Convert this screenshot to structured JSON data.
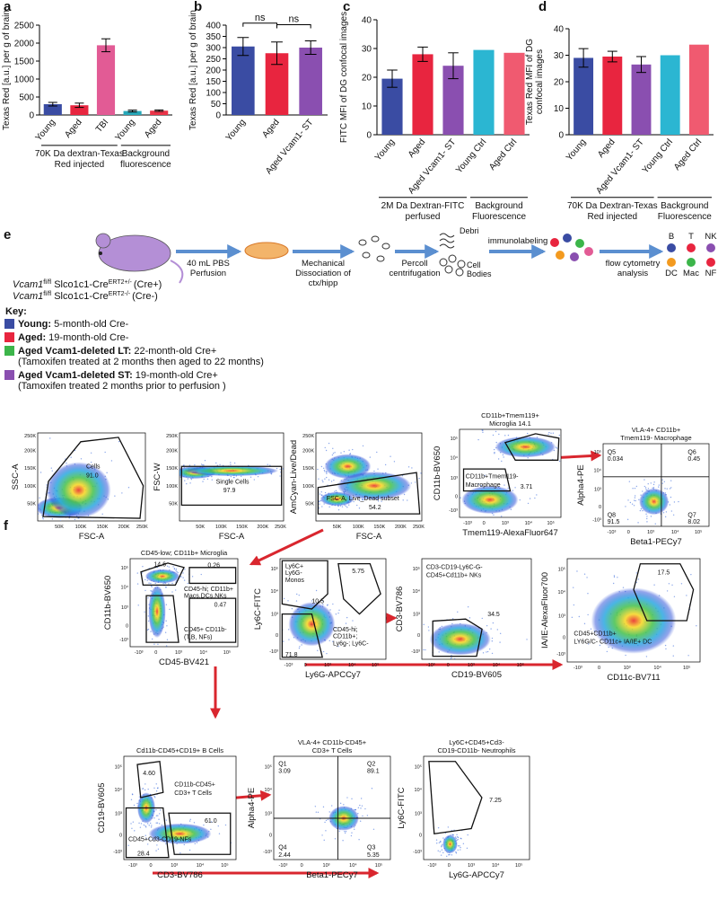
{
  "chart_data": [
    {
      "type": "bar",
      "panel": "a",
      "ylabel": [
        "Texas Red [a.u.] per g of brain"
      ],
      "ylim": [
        0,
        2500
      ],
      "yticks": [
        0,
        500,
        1000,
        1500,
        2000,
        2500
      ],
      "groups": [
        {
          "label": [
            "70K Da dextran-Texas",
            "Red injected"
          ],
          "bars": [
            {
              "category": "Young",
              "value": 300,
              "error": 50,
              "color": "#3a4ca3"
            },
            {
              "category": "Aged",
              "value": 270,
              "error": 60,
              "color": "#e8253f"
            },
            {
              "category": "TBI",
              "value": 1940,
              "error": 180,
              "color": "#e25b95"
            }
          ]
        },
        {
          "label": [
            "Background",
            "fluorescence"
          ],
          "bars": [
            {
              "category": "Young",
              "value": 110,
              "error": 25,
              "color": "#26a7b8"
            },
            {
              "category": "Aged",
              "value": 120,
              "error": 20,
              "color": "#ea3348"
            }
          ]
        }
      ]
    },
    {
      "type": "bar",
      "panel": "b",
      "ylabel": [
        "Texas Red [a.u.] per g of brain"
      ],
      "ylim": [
        0,
        400
      ],
      "yticks": [
        0,
        50,
        100,
        150,
        200,
        250,
        300,
        350,
        400
      ],
      "groups": [
        {
          "bars": [
            {
              "category": "Young",
              "value": 305,
              "error": 40,
              "color": "#3a4ca3"
            },
            {
              "category": "Aged",
              "value": 275,
              "error": 50,
              "color": "#e8253f"
            },
            {
              "category": "Aged Vcam1- ST",
              "value": 300,
              "error": 30,
              "color": "#8a4fb0"
            }
          ]
        }
      ],
      "annotations": [
        "ns",
        "ns"
      ]
    },
    {
      "type": "bar",
      "panel": "c",
      "ylabel": [
        "FITC MFI of DG confocal images"
      ],
      "ylim": [
        0,
        40
      ],
      "yticks": [
        0,
        10,
        20,
        30,
        40
      ],
      "groups": [
        {
          "label": [
            "2M Da Dextran-FITC",
            "perfused"
          ],
          "bars": [
            {
              "category": "Young",
              "value": 19.5,
              "error": 3,
              "color": "#3a4ca3"
            },
            {
              "category": "Aged",
              "value": 28,
              "error": 2.5,
              "color": "#e8253f"
            },
            {
              "category": "Aged Vcam1- ST",
              "value": 24,
              "error": 4.5,
              "color": "#8a4fb0"
            }
          ]
        },
        {
          "label": [
            "Background",
            "Fluorescence"
          ],
          "bars": [
            {
              "category": "Young Ctrl",
              "value": 29.5,
              "color": "#2bb6d2"
            },
            {
              "category": "Aged Ctrl",
              "value": 28.5,
              "color": "#f05a70"
            }
          ]
        }
      ]
    },
    {
      "type": "bar",
      "panel": "d",
      "ylabel": [
        "Texas Red MFI of DG",
        "confocal images"
      ],
      "ylim": [
        0,
        40
      ],
      "yticks": [
        0,
        10,
        20,
        30,
        40
      ],
      "groups": [
        {
          "label": [
            "70K Da Dextran-Texas",
            "Red injected"
          ],
          "bars": [
            {
              "category": "Young",
              "value": 29,
              "error": 3.5,
              "color": "#3a4ca3"
            },
            {
              "category": "Aged",
              "value": 29.5,
              "error": 2,
              "color": "#e8253f"
            },
            {
              "category": "Aged Vcam1- ST",
              "value": 26.5,
              "error": 3,
              "color": "#8a4fb0"
            }
          ]
        },
        {
          "label": [
            "Background",
            "Fluorescence"
          ],
          "bars": [
            {
              "category": "Young Ctrl",
              "value": 30,
              "color": "#2bb6d2"
            },
            {
              "category": "Aged Ctrl",
              "value": 34,
              "color": "#f05a70"
            }
          ]
        }
      ]
    }
  ],
  "schematic": {
    "panel": "e",
    "steps": [
      [
        "40 mL PBS",
        "Perfusion"
      ],
      [
        "Mechanical",
        "Dissociation of",
        "ctx/hipp"
      ],
      [
        "Percoll",
        "centrifugation"
      ],
      [
        "immunolabeling"
      ],
      [
        "flow cytometry",
        "analysis"
      ]
    ],
    "debris": "Debri",
    "cell_bodies": [
      "Cell",
      "Bodies"
    ],
    "cell_types": [
      "B",
      "T",
      "NK",
      "DC",
      "Mac",
      "NF"
    ],
    "genotypes": [
      {
        "gene": "Vcam1",
        "gene_sup": "fl/fl",
        "driver": "Slco1c1-Cre",
        "driver_sup": "ERT2+/-",
        "note": "(Cre+)"
      },
      {
        "gene": "Vcam1",
        "gene_sup": "fl/fl",
        "driver": "Slco1c1-Cre",
        "driver_sup": "ERT2-/-",
        "note": "(Cre-)"
      }
    ],
    "key_title": "Key:",
    "key": [
      {
        "name": "Young:",
        "desc": "5-month-old Cre-",
        "color": "#3a4ca3"
      },
      {
        "name": "Aged:",
        "desc": "19-month-old Cre-",
        "color": "#e8253f"
      },
      {
        "name": "Aged Vcam1-deleted LT:",
        "desc": "22-month-old Cre+",
        "note": "(Tamoxifen treated at 2 months then aged to 22 months)",
        "color": "#3cb54a"
      },
      {
        "name": "Aged Vcam1-deleted ST:",
        "desc": "19-month-old Cre+",
        "note": "(Tamoxifen treated 2 months prior to perfusion )",
        "color": "#8a4fb0"
      }
    ]
  },
  "flow": {
    "panel": "f",
    "tick_labels": {
      "linear": [
        "50K",
        "100K",
        "150K",
        "200K",
        "250K"
      ],
      "log": [
        "-10³",
        "0",
        "10³",
        "10⁴",
        "10⁵"
      ]
    },
    "plots": [
      {
        "ylabel": "SSC-A",
        "xlabel": "FSC-A",
        "labels": [
          "Cells",
          "91.0"
        ]
      },
      {
        "ylabel": "FSC-W",
        "xlabel": "FSC-A",
        "labels": [
          "Single Cells",
          "97.9"
        ]
      },
      {
        "ylabel": "AmCyan-Live/Dead",
        "xlabel": "FSC-A",
        "labels": [
          "FSC-A, Live_Dead subset",
          "54.2"
        ]
      },
      {
        "title": [
          "CD11b+Tmem119+",
          "Microglia 14.1"
        ],
        "ylabel": "CD11b-BV650",
        "xlabel": "Tmem119-AlexaFluor647",
        "labels": [
          "CD11b+Tmem119-",
          "Macrophage",
          "3.71"
        ]
      },
      {
        "title": [
          "VLA-4+ CD11b+",
          "Tmem119- Macrophage"
        ],
        "ylabel": "Alpha4-PE",
        "xlabel": "Beta1-PECy7",
        "labels": [
          "Q5",
          "0.034",
          "Q6",
          "0.45",
          "Q8",
          "91.5",
          "Q7",
          "8.02"
        ]
      },
      {
        "title": [
          "CD45-low; CD11b+ Microglia"
        ],
        "ylabel": "CD11b-BV650",
        "xlabel": "CD45-BV421",
        "labels": [
          "14.6",
          "0.26",
          "CD45-hi; CD11b+",
          "Macs,DCs,NKs",
          "0.47",
          "CD45+ CD11b-",
          "(T,B, NFs)"
        ]
      },
      {
        "ylabel": "Ly6C-FITC",
        "xlabel": "Ly6G-APCCy7",
        "labels": [
          "Ly6C+",
          "Ly6G-",
          "Monos",
          "10.5",
          "5.75",
          "CD45-hi;",
          "CD11b+;",
          "Ly6g-; Ly6C-",
          "71.8"
        ]
      },
      {
        "ylabel": "CD3-BV786",
        "xlabel": "CD19-BV605",
        "labels": [
          "CD3-CD19-Ly6C-G-",
          "CD45+Cd11b+ NKs",
          "34.5"
        ]
      },
      {
        "ylabel": "IA/IE-AlexaFluor700",
        "xlabel": "CD11c-BV711",
        "labels": [
          "17.5",
          "CD45+CD11b+",
          "LY6G/C- CD11c+ IA/IE+ DC"
        ]
      },
      {
        "title": [
          "Cd11b-CD45+CD19+ B Cells"
        ],
        "ylabel": "CD19-BV605",
        "xlabel": "CD3-BV786",
        "labels": [
          "4.60",
          "CD11b-CD45+",
          "CD3+ T Cells",
          "61.0",
          "CD45+Cd3-CD19-NFs",
          "28.4"
        ]
      },
      {
        "title": [
          "VLA-4+ CD11b-CD45+",
          "CD3+ T Cells"
        ],
        "ylabel": "Alpha4-PE",
        "xlabel": "Beta1-PECy7",
        "labels": [
          "Q1",
          "3.09",
          "Q2",
          "89.1",
          "Q4",
          "2.44",
          "Q3",
          "5.35"
        ]
      },
      {
        "title": [
          "Ly6C+CD45+Cd3-",
          "CD19-CD11b- Neutrophils"
        ],
        "ylabel": "Ly6C-FITC",
        "xlabel": "Ly6G-APCCy7",
        "labels": [
          "7.25"
        ]
      }
    ]
  }
}
